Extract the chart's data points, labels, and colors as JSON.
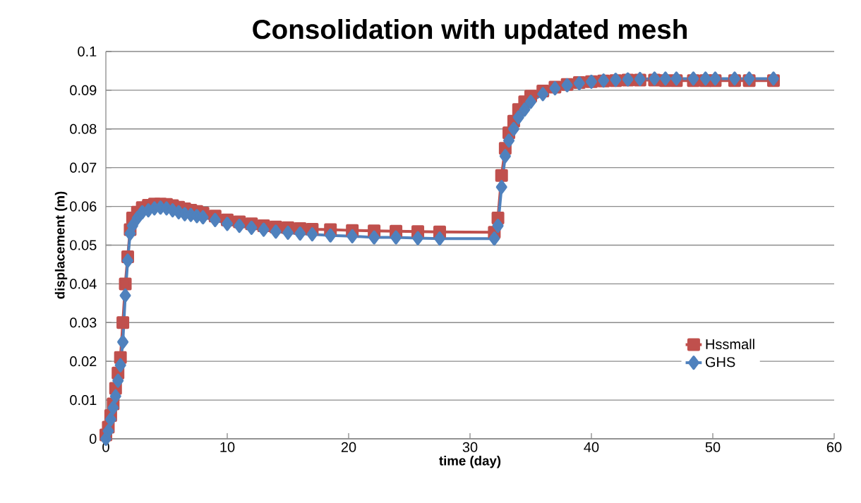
{
  "chart_data": {
    "type": "line",
    "title": "Consolidation with updated mesh",
    "xlabel": "time (day)",
    "ylabel": "displacement (m)",
    "x": [
      0,
      0.2,
      0.4,
      0.6,
      0.8,
      1.0,
      1.2,
      1.4,
      1.6,
      1.8,
      2.0,
      2.2,
      2.6,
      3,
      3.5,
      4,
      4.5,
      5,
      5.5,
      6,
      6.5,
      7,
      7.5,
      8,
      9,
      10,
      11,
      12,
      13,
      14,
      15,
      16,
      17,
      18.5,
      20.3,
      22.1,
      23.9,
      25.7,
      27.5,
      32,
      32.3,
      32.6,
      32.9,
      33.2,
      33.6,
      34,
      34.5,
      35,
      36,
      37,
      38,
      39,
      40,
      41,
      42,
      43,
      44,
      45.2,
      46.1,
      47,
      48.4,
      49.4,
      50.2,
      51.8,
      53,
      55
    ],
    "series": [
      {
        "name": "Hssmall",
        "color": "#c0504d",
        "marker": "square",
        "values": [
          0.001,
          0.003,
          0.006,
          0.009,
          0.013,
          0.017,
          0.021,
          0.03,
          0.04,
          0.047,
          0.054,
          0.057,
          0.0585,
          0.0597,
          0.0603,
          0.0606,
          0.0606,
          0.0605,
          0.0602,
          0.0598,
          0.0594,
          0.059,
          0.0587,
          0.0583,
          0.0575,
          0.0565,
          0.056,
          0.0555,
          0.055,
          0.0547,
          0.0545,
          0.0543,
          0.0541,
          0.054,
          0.0538,
          0.0537,
          0.0536,
          0.0535,
          0.0534,
          0.0533,
          0.057,
          0.068,
          0.075,
          0.079,
          0.082,
          0.085,
          0.087,
          0.0885,
          0.0898,
          0.0908,
          0.0915,
          0.092,
          0.0922,
          0.0924,
          0.0925,
          0.0926,
          0.0926,
          0.0926,
          0.0925,
          0.0925,
          0.0925,
          0.0925,
          0.0925,
          0.0925,
          0.0925,
          0.0925
        ]
      },
      {
        "name": "GHS",
        "color": "#4f81bd",
        "marker": "diamond",
        "values": [
          0,
          0.002,
          0.005,
          0.008,
          0.011,
          0.015,
          0.019,
          0.025,
          0.037,
          0.046,
          0.053,
          0.055,
          0.057,
          0.0585,
          0.059,
          0.0595,
          0.0597,
          0.0595,
          0.059,
          0.0585,
          0.058,
          0.0578,
          0.0575,
          0.0572,
          0.0565,
          0.0555,
          0.055,
          0.0545,
          0.054,
          0.0535,
          0.0532,
          0.053,
          0.0528,
          0.0525,
          0.0523,
          0.052,
          0.052,
          0.0518,
          0.0517,
          0.0517,
          0.055,
          0.065,
          0.073,
          0.077,
          0.08,
          0.083,
          0.085,
          0.087,
          0.089,
          0.0905,
          0.0913,
          0.0918,
          0.0922,
          0.0925,
          0.0927,
          0.0928,
          0.0929,
          0.093,
          0.093,
          0.093,
          0.093,
          0.093,
          0.093,
          0.093,
          0.093,
          0.093
        ]
      }
    ],
    "xlim": [
      0,
      60
    ],
    "xticks": [
      0,
      10,
      20,
      30,
      40,
      50,
      60
    ],
    "ylim": [
      0,
      0.1
    ],
    "yticks": [
      0,
      0.01,
      0.02,
      0.03,
      0.04,
      0.05,
      0.06,
      0.07,
      0.08,
      0.09,
      0.1
    ],
    "grid": "y",
    "legend": "right",
    "line_style": "solid"
  }
}
